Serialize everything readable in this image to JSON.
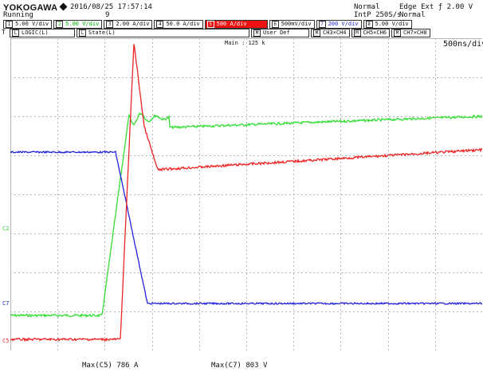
{
  "header": {
    "brand": "YOKOGAWA",
    "status": "Running",
    "datetime": "2016/08/25  17:57:14",
    "acq_count": "9",
    "acq_mode": "Normal",
    "sample_rate": "IntP 250S/s",
    "trigger": "Edge Ext ƒ 2.00 V",
    "trigger_mode": "Normal"
  },
  "channels_row1": [
    {
      "num": "1",
      "label": "5.00 V/div",
      "color": "#111111"
    },
    {
      "num": "2",
      "label": "5.00 V/div",
      "color": "#00b000"
    },
    {
      "num": "3",
      "label": "2.00 A/div",
      "color": "#111111"
    },
    {
      "num": "4",
      "label": "50.0 A/div",
      "color": "#111111"
    },
    {
      "num": "5",
      "label": "500 A/div",
      "color": "#ffffff"
    },
    {
      "num": "6",
      "label": "500mV/div",
      "color": "#111111"
    },
    {
      "num": "7",
      "label": "200 V/div",
      "color": "#2222cc"
    },
    {
      "num": "8",
      "label": "5.00 V/div",
      "color": "#111111"
    }
  ],
  "channels_row2": [
    {
      "num": "L",
      "label": "LOGIC(L)"
    },
    {
      "num": "L",
      "label": "State(L)"
    },
    {
      "num": "M",
      "label": "User Def"
    },
    {
      "num": "M",
      "label": "CH3×CH4"
    },
    {
      "num": "M",
      "label": "CH5×CH6"
    },
    {
      "num": "M",
      "label": "CH7×CH8"
    }
  ],
  "t_label": "T",
  "main_label": "Main : 125 k",
  "time_div": "500ns/div",
  "markers": {
    "green": "C2",
    "blue": "C7",
    "red": "C5"
  },
  "measurements": {
    "max_c5": "Max(C5)   786 A",
    "max_c7": "Max(C7)   803 V"
  },
  "colors": {
    "green": "#33dd33",
    "red": "#ee2222",
    "blue": "#2222dd",
    "grid": "#b5b5b5",
    "highlight": "#ee1111"
  }
}
